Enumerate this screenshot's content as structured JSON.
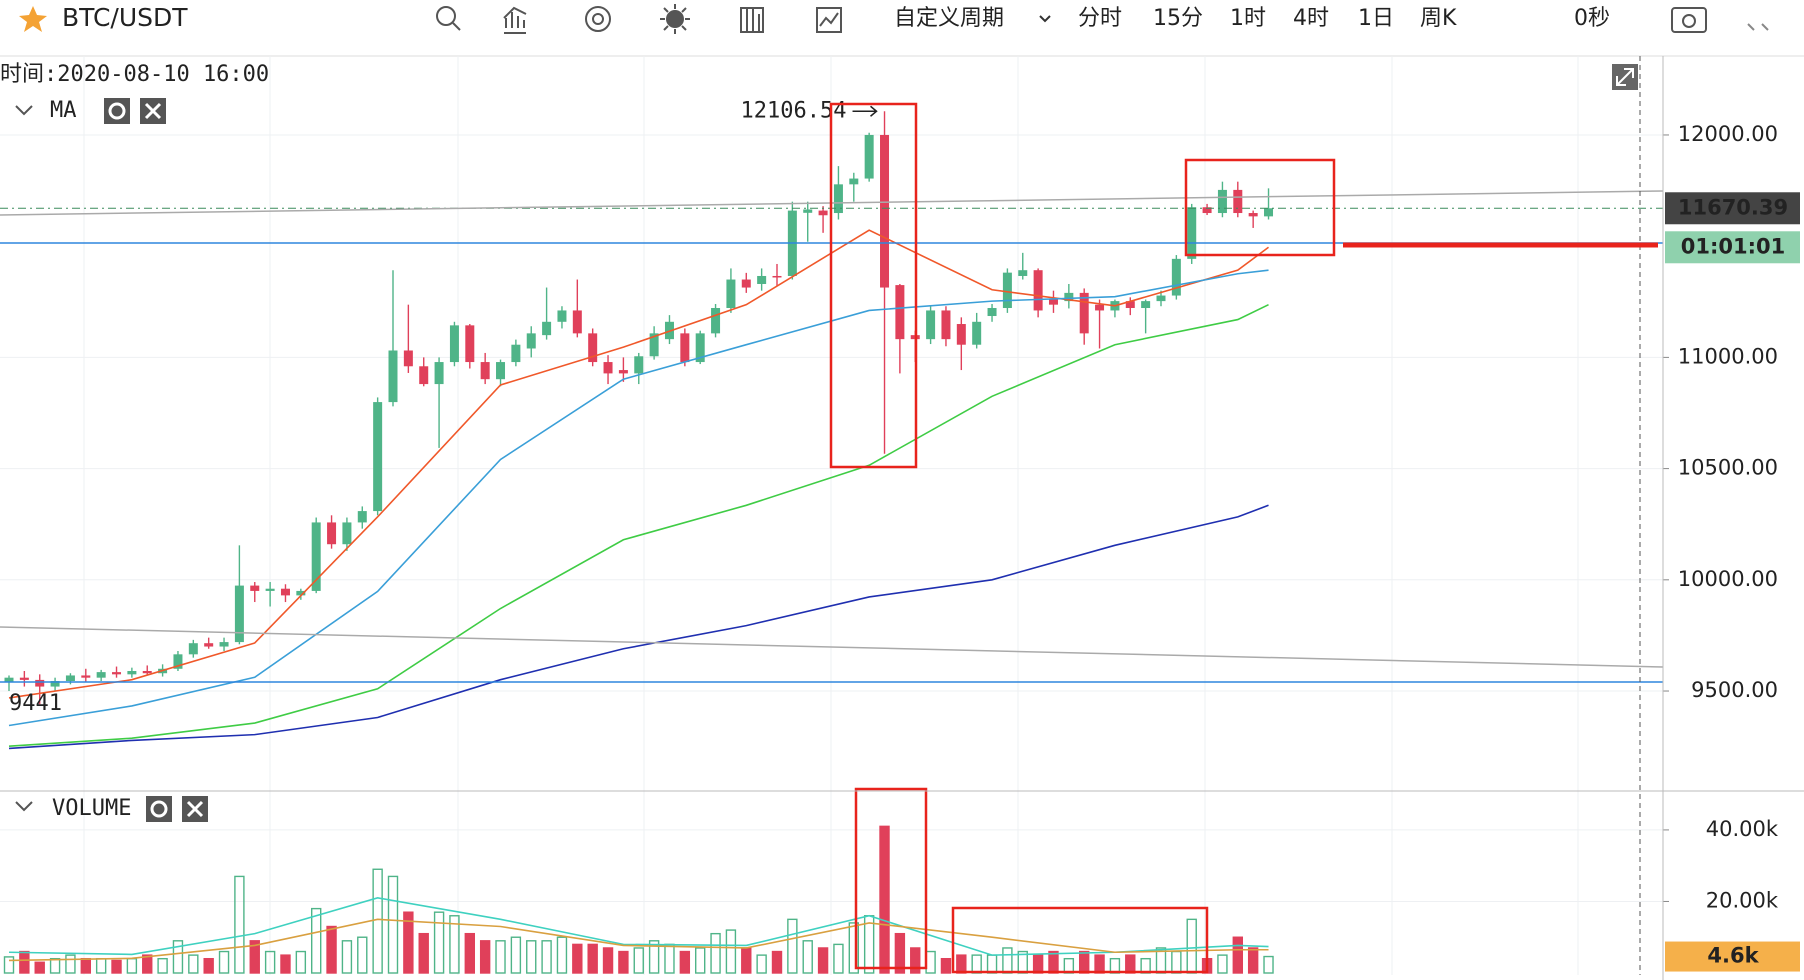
{
  "toolbar": {
    "symbol": "BTC/USDT",
    "periods": [
      "自定义周期",
      "分时",
      "15分",
      "1时",
      "4时",
      "1日",
      "周K"
    ],
    "active_period": 4,
    "timer": "0秒"
  },
  "chart_data": [
    {
      "type": "candlestick",
      "info": "时间:2020-08-10 16:00",
      "indicator": "MA",
      "ylim": [
        9055,
        12355
      ],
      "yticks": [
        {
          "value": 9500,
          "label": "9500.00"
        },
        {
          "value": 10000,
          "label": "10000.00"
        },
        {
          "value": 10500,
          "label": "10500.00"
        },
        {
          "value": 11000,
          "label": "11000.00"
        },
        {
          "value": 12000,
          "label": "12000.00"
        }
      ],
      "grid": true,
      "up_color": "#4fb488",
      "down_color": "#e0405a",
      "high_label": {
        "index": 57,
        "value": 12106.54
      },
      "low_label": {
        "index": 2,
        "value": 9441
      },
      "last_price": 11670.39,
      "countdown": "01:01:01",
      "ohlc": [
        [
          9540,
          9570,
          9500,
          9560
        ],
        [
          9560,
          9590,
          9520,
          9550
        ],
        [
          9550,
          9575,
          9441,
          9520
        ],
        [
          9520,
          9560,
          9500,
          9545
        ],
        [
          9545,
          9580,
          9530,
          9570
        ],
        [
          9570,
          9600,
          9540,
          9560
        ],
        [
          9560,
          9595,
          9545,
          9585
        ],
        [
          9585,
          9610,
          9560,
          9575
        ],
        [
          9575,
          9605,
          9560,
          9590
        ],
        [
          9590,
          9615,
          9570,
          9580
        ],
        [
          9580,
          9620,
          9565,
          9600
        ],
        [
          9600,
          9680,
          9590,
          9665
        ],
        [
          9665,
          9730,
          9650,
          9715
        ],
        [
          9715,
          9740,
          9690,
          9700
        ],
        [
          9700,
          9740,
          9680,
          9720
        ],
        [
          9720,
          10155,
          9710,
          9974
        ],
        [
          9974,
          9990,
          9900,
          9950
        ],
        [
          9950,
          9990,
          9880,
          9960
        ],
        [
          9960,
          9980,
          9900,
          9930
        ],
        [
          9930,
          9960,
          9910,
          9950
        ],
        [
          9950,
          10280,
          9940,
          10258
        ],
        [
          10258,
          10290,
          10140,
          10160
        ],
        [
          10160,
          10280,
          10130,
          10258
        ],
        [
          10258,
          10330,
          10230,
          10309
        ],
        [
          10309,
          10820,
          10290,
          10799
        ],
        [
          10799,
          11392,
          10780,
          11031
        ],
        [
          11031,
          11237,
          10930,
          10960
        ],
        [
          10960,
          11000,
          10870,
          10880
        ],
        [
          10880,
          11000,
          10593,
          10979
        ],
        [
          10979,
          11160,
          10960,
          11144
        ],
        [
          11144,
          11150,
          10950,
          10979
        ],
        [
          10979,
          11020,
          10880,
          10902
        ],
        [
          10902,
          10990,
          10870,
          10979
        ],
        [
          10979,
          11080,
          10960,
          11057
        ],
        [
          11040,
          11140,
          11000,
          11108
        ],
        [
          11100,
          11314,
          11080,
          11160
        ],
        [
          11160,
          11230,
          11130,
          11211
        ],
        [
          11211,
          11350,
          11090,
          11108
        ],
        [
          11108,
          11130,
          10960,
          10979
        ],
        [
          10979,
          11010,
          10880,
          10928
        ],
        [
          10943,
          11000,
          10890,
          10928
        ],
        [
          10928,
          11020,
          10880,
          11005
        ],
        [
          11005,
          11140,
          10990,
          11108
        ],
        [
          11082,
          11190,
          11060,
          11160
        ],
        [
          11108,
          11130,
          10960,
          10979
        ],
        [
          10979,
          11120,
          10970,
          11108
        ],
        [
          11108,
          11240,
          11090,
          11222
        ],
        [
          11222,
          11400,
          11200,
          11350
        ],
        [
          11350,
          11380,
          11290,
          11314
        ],
        [
          11330,
          11400,
          11300,
          11366
        ],
        [
          11366,
          11420,
          11320,
          11360
        ],
        [
          11366,
          11700,
          11350,
          11660
        ],
        [
          11650,
          11700,
          11520,
          11665
        ],
        [
          11660,
          11680,
          11560,
          11639
        ],
        [
          11649,
          11860,
          11620,
          11778
        ],
        [
          11778,
          11830,
          11700,
          11804
        ],
        [
          11804,
          12010,
          11790,
          12000
        ],
        [
          12000,
          12106.54,
          10567,
          11314
        ],
        [
          11325,
          11330,
          10928,
          11082
        ],
        [
          11100,
          11120,
          10979,
          11082
        ],
        [
          11082,
          11230,
          11060,
          11211
        ],
        [
          11211,
          11230,
          11050,
          11082
        ],
        [
          11150,
          11180,
          10943,
          11057
        ],
        [
          11057,
          11200,
          11040,
          11160
        ],
        [
          11186,
          11240,
          11160,
          11222
        ],
        [
          11222,
          11400,
          11200,
          11381
        ],
        [
          11366,
          11470,
          11350,
          11392
        ],
        [
          11392,
          11400,
          11180,
          11211
        ],
        [
          11263,
          11300,
          11200,
          11237
        ],
        [
          11253,
          11330,
          11220,
          11290
        ],
        [
          11290,
          11310,
          11057,
          11108
        ],
        [
          11237,
          11260,
          11040,
          11211
        ],
        [
          11211,
          11260,
          11180,
          11253
        ],
        [
          11253,
          11270,
          11190,
          11222
        ],
        [
          11222,
          11260,
          11108,
          11253
        ],
        [
          11253,
          11300,
          11230,
          11278
        ],
        [
          11278,
          11460,
          11260,
          11443
        ],
        [
          11443,
          11690,
          11420,
          11675
        ],
        [
          11675,
          11690,
          11640,
          11649
        ],
        [
          11649,
          11790,
          11630,
          11753
        ],
        [
          11753,
          11790,
          11630,
          11649
        ],
        [
          11649,
          11660,
          11582,
          11634
        ],
        [
          11634,
          11760,
          11620,
          11670.39
        ]
      ],
      "series": [
        {
          "color": "#f0582a",
          "x": [
            0,
            8,
            16,
            24,
            32,
            40,
            48,
            56,
            64,
            72,
            80,
            82
          ],
          "values": [
            9469,
            9551,
            9716,
            10283,
            10876,
            11046,
            11237,
            11572,
            11304,
            11232,
            11392,
            11495
          ]
        },
        {
          "color": "#3a9fd8",
          "x": [
            0,
            8,
            16,
            24,
            32,
            40,
            48,
            56,
            64,
            72,
            80,
            82
          ],
          "values": [
            9345,
            9433,
            9562,
            9948,
            10541,
            10902,
            11057,
            11211,
            11253,
            11273,
            11376,
            11392
          ]
        },
        {
          "color": "#3fcc45",
          "x": [
            0,
            8,
            16,
            24,
            32,
            40,
            48,
            56,
            64,
            72,
            80,
            82
          ],
          "values": [
            9252,
            9288,
            9356,
            9510,
            9871,
            10180,
            10335,
            10515,
            10825,
            11057,
            11170,
            11237
          ]
        },
        {
          "color": "#1f2fb0",
          "x": [
            0,
            8,
            16,
            24,
            32,
            40,
            48,
            56,
            64,
            72,
            80,
            82
          ],
          "values": [
            9242,
            9278,
            9304,
            9381,
            9551,
            9690,
            9794,
            9923,
            10000,
            10155,
            10283,
            10335
          ]
        }
      ]
    },
    {
      "type": "volume",
      "indicator": "VOLUME",
      "ylim": [
        0,
        50600
      ],
      "yticks": [
        {
          "value": 20000,
          "label": "20.00k"
        },
        {
          "value": 40000,
          "label": "40.00k"
        }
      ],
      "values": [
        4500,
        6000,
        3000,
        4000,
        5000,
        4000,
        4000,
        3500,
        4000,
        5000,
        4000,
        9000,
        5000,
        4000,
        6000,
        27000,
        9000,
        6000,
        5000,
        6000,
        18000,
        13000,
        9000,
        10000,
        29000,
        27000,
        17000,
        11000,
        17000,
        16000,
        11000,
        9000,
        9000,
        10000,
        9000,
        9000,
        10000,
        8000,
        8000,
        7000,
        6000,
        7000,
        9000,
        8000,
        6000,
        7000,
        11000,
        12000,
        7000,
        5000,
        6000,
        15000,
        9000,
        7000,
        8000,
        14000,
        16000,
        41000,
        11000,
        7000,
        6000,
        4000,
        5000,
        5000,
        5000,
        7000,
        6000,
        5000,
        6000,
        4000,
        6000,
        5000,
        4000,
        5000,
        4000,
        7000,
        6000,
        15000,
        4000,
        5000,
        10000,
        7000,
        4600
      ],
      "value_labels": {
        "82": "4.6k"
      },
      "series": [
        {
          "color": "#3fd1c0",
          "x": [
            0,
            8,
            16,
            24,
            32,
            40,
            48,
            56,
            64,
            72,
            80,
            82
          ],
          "values": [
            5800,
            5200,
            11000,
            21000,
            15000,
            8000,
            7700,
            16000,
            5000,
            5800,
            7700,
            7400
          ]
        },
        {
          "color": "#d9a040",
          "x": [
            0,
            8,
            16,
            24,
            32,
            40,
            48,
            56,
            64,
            72,
            80,
            82
          ],
          "values": [
            3500,
            4100,
            7700,
            15000,
            13000,
            7700,
            7000,
            14000,
            10000,
            5800,
            6500,
            6500
          ]
        }
      ]
    }
  ]
}
